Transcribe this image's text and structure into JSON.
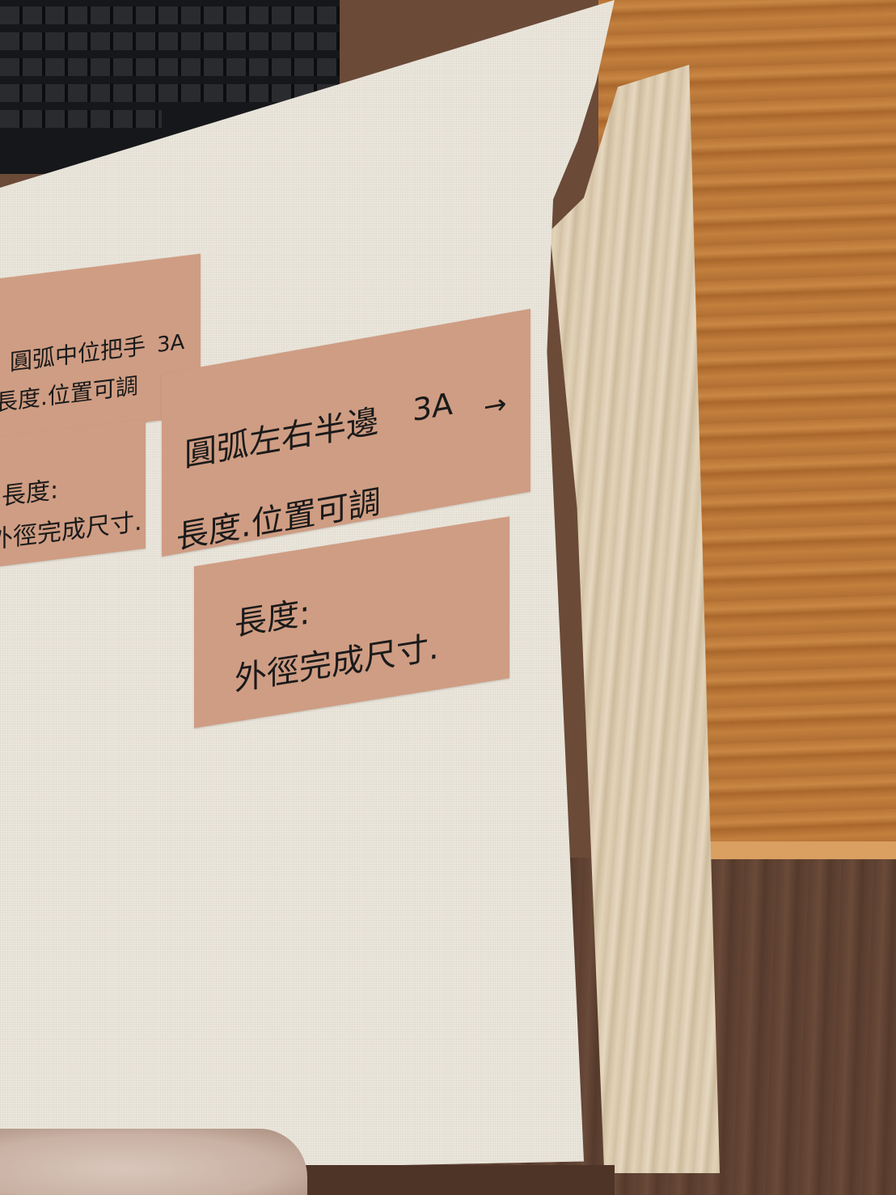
{
  "labels": {
    "label1": {
      "line1": "圓弧中位把手",
      "tag": "3A",
      "line2": "長度.位置可調"
    },
    "label2": {
      "line1": "長度:",
      "line2": "外徑完成尺寸."
    },
    "label3": {
      "line1": "圓弧左右半邊",
      "tag": "3A",
      "arrow": "→",
      "line2": "長度.位置可調"
    },
    "label4": {
      "line1": "長度:",
      "line2": "外徑完成尺寸."
    }
  },
  "colors": {
    "label_bg": "#cf9d83",
    "panel": "#ebe6dc",
    "counter_wood": "#b87536"
  }
}
